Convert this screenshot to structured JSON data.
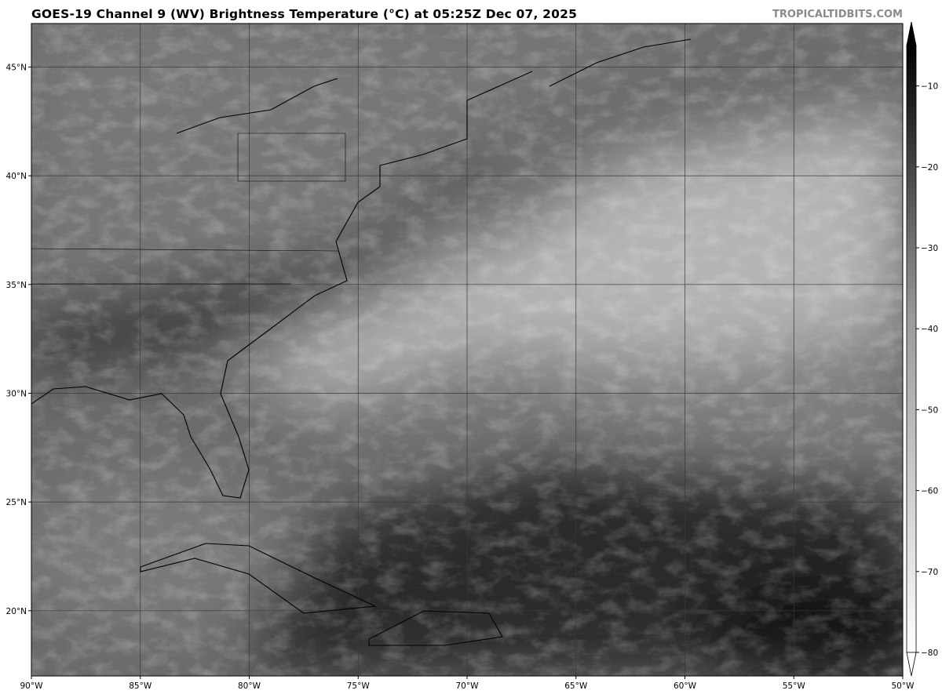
{
  "header": {
    "title": "GOES-19 Channel 9 (WV) Brightness Temperature (°C) at 05:25Z Dec 07, 2025",
    "credit": "TROPICALTIDBITS.COM"
  },
  "map": {
    "lon_range": [
      -90,
      -50
    ],
    "lat_range": [
      17,
      47
    ],
    "x_ticks": [
      {
        "value": -90,
        "label": "90°W"
      },
      {
        "value": -85,
        "label": "85°W"
      },
      {
        "value": -80,
        "label": "80°W"
      },
      {
        "value": -75,
        "label": "75°W"
      },
      {
        "value": -70,
        "label": "70°W"
      },
      {
        "value": -65,
        "label": "65°W"
      },
      {
        "value": -60,
        "label": "60°W"
      },
      {
        "value": -55,
        "label": "55°W"
      },
      {
        "value": -50,
        "label": "50°W"
      }
    ],
    "y_ticks": [
      {
        "value": 20,
        "label": "20°N"
      },
      {
        "value": 25,
        "label": "25°N"
      },
      {
        "value": 30,
        "label": "30°N"
      },
      {
        "value": 35,
        "label": "35°N"
      },
      {
        "value": 40,
        "label": "40°N"
      },
      {
        "value": 45,
        "label": "45°N"
      }
    ],
    "gridlines": true,
    "colors": {
      "land_outline": "#000000",
      "grid": "#3a3a3a"
    }
  },
  "colorbar": {
    "range": [
      -80,
      -5
    ],
    "colormap": "grayscale (black warm, white cold)",
    "extend": "both",
    "ticks": [
      {
        "value": -10,
        "label": "−10"
      },
      {
        "value": -20,
        "label": "−20"
      },
      {
        "value": -30,
        "label": "−30"
      },
      {
        "value": -40,
        "label": "−40"
      },
      {
        "value": -50,
        "label": "−50"
      },
      {
        "value": -60,
        "label": "−60"
      },
      {
        "value": -70,
        "label": "−70"
      },
      {
        "value": -80,
        "label": "−80"
      }
    ]
  }
}
